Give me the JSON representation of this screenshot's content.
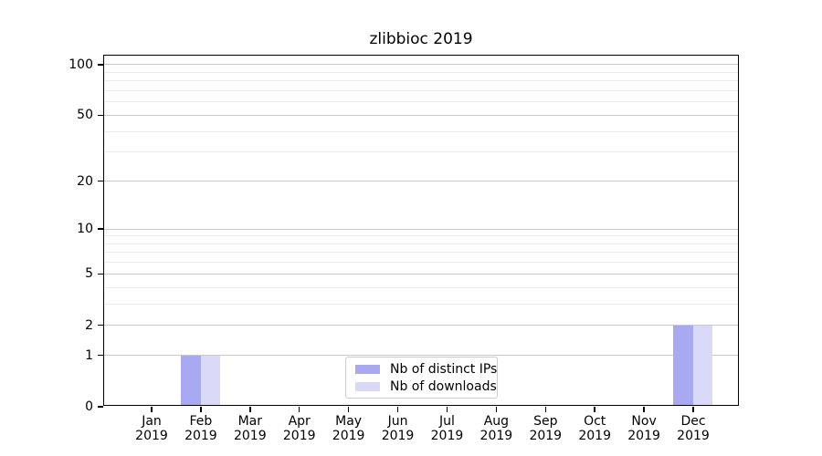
{
  "chart_data": {
    "type": "bar",
    "title": "zlibbioc 2019",
    "x_tick_labels": [
      [
        "Jan",
        "2019"
      ],
      [
        "Feb",
        "2019"
      ],
      [
        "Mar",
        "2019"
      ],
      [
        "Apr",
        "2019"
      ],
      [
        "May",
        "2019"
      ],
      [
        "Jun",
        "2019"
      ],
      [
        "Jul",
        "2019"
      ],
      [
        "Aug",
        "2019"
      ],
      [
        "Sep",
        "2019"
      ],
      [
        "Oct",
        "2019"
      ],
      [
        "Nov",
        "2019"
      ],
      [
        "Dec",
        "2019"
      ]
    ],
    "series": [
      {
        "name": "Nb of distinct IPs",
        "color": "#a9a9f1",
        "values": [
          0,
          1,
          0,
          0,
          0,
          0,
          0,
          0,
          0,
          0,
          0,
          2
        ]
      },
      {
        "name": "Nb of downloads",
        "color": "#dadaf8",
        "values": [
          0,
          1,
          0,
          0,
          0,
          0,
          0,
          0,
          0,
          0,
          0,
          2
        ]
      }
    ],
    "yscale": "log10(1+value)",
    "y_tick_values": [
      0,
      1,
      2,
      5,
      10,
      20,
      50,
      100
    ],
    "y_minor_tick_values": [
      3,
      4,
      6,
      7,
      8,
      9,
      30,
      40,
      60,
      70,
      80,
      90
    ],
    "ylim": [
      0,
      113
    ],
    "grid": "horizontal",
    "legend_position": "lower center inside plot"
  },
  "colors": {
    "axis": "#000000",
    "grid_major": "#c9c9c9",
    "grid_minor": "#ececec",
    "legend_border": "#cccccc",
    "background": "#ffffff"
  }
}
